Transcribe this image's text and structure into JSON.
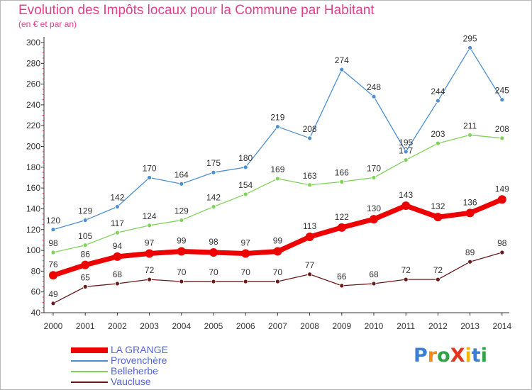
{
  "header": {
    "title": "Evolution des Impôts locaux pour la Commune par Habitant",
    "subtitle": "(en € et par an)"
  },
  "logo": {
    "text": "ProXiti"
  },
  "chart_data": {
    "type": "line",
    "x": [
      2000,
      2001,
      2002,
      2003,
      2004,
      2005,
      2006,
      2007,
      2008,
      2009,
      2010,
      2011,
      2012,
      2013,
      2014
    ],
    "ylim": [
      40,
      300
    ],
    "yticks": [
      40,
      60,
      80,
      100,
      120,
      140,
      160,
      180,
      200,
      220,
      240,
      260,
      280,
      300
    ],
    "grid": false,
    "legend_position": "bottom-left",
    "series": [
      {
        "name": "Vaucluse",
        "color": "#6b1a1a",
        "values": [
          49,
          65,
          68,
          72,
          70,
          70,
          70,
          70,
          77,
          66,
          68,
          72,
          72,
          89,
          98
        ]
      },
      {
        "name": "Belleherbe",
        "color": "#7fd35a",
        "values": [
          98,
          105,
          117,
          124,
          129,
          142,
          154,
          169,
          163,
          166,
          170,
          187,
          203,
          211,
          208
        ]
      },
      {
        "name": "Provenchère",
        "color": "#4d8fd0",
        "values": [
          120,
          129,
          142,
          170,
          164,
          175,
          180,
          219,
          208,
          274,
          248,
          195,
          244,
          295,
          245
        ]
      },
      {
        "name": "LA GRANGE",
        "color": "#ee0000",
        "values": [
          76,
          86,
          94,
          97,
          99,
          98,
          97,
          99,
          113,
          122,
          130,
          143,
          132,
          136,
          149
        ]
      }
    ],
    "legend_order": [
      "LA GRANGE",
      "Provenchère",
      "Belleherbe",
      "Vaucluse"
    ]
  }
}
